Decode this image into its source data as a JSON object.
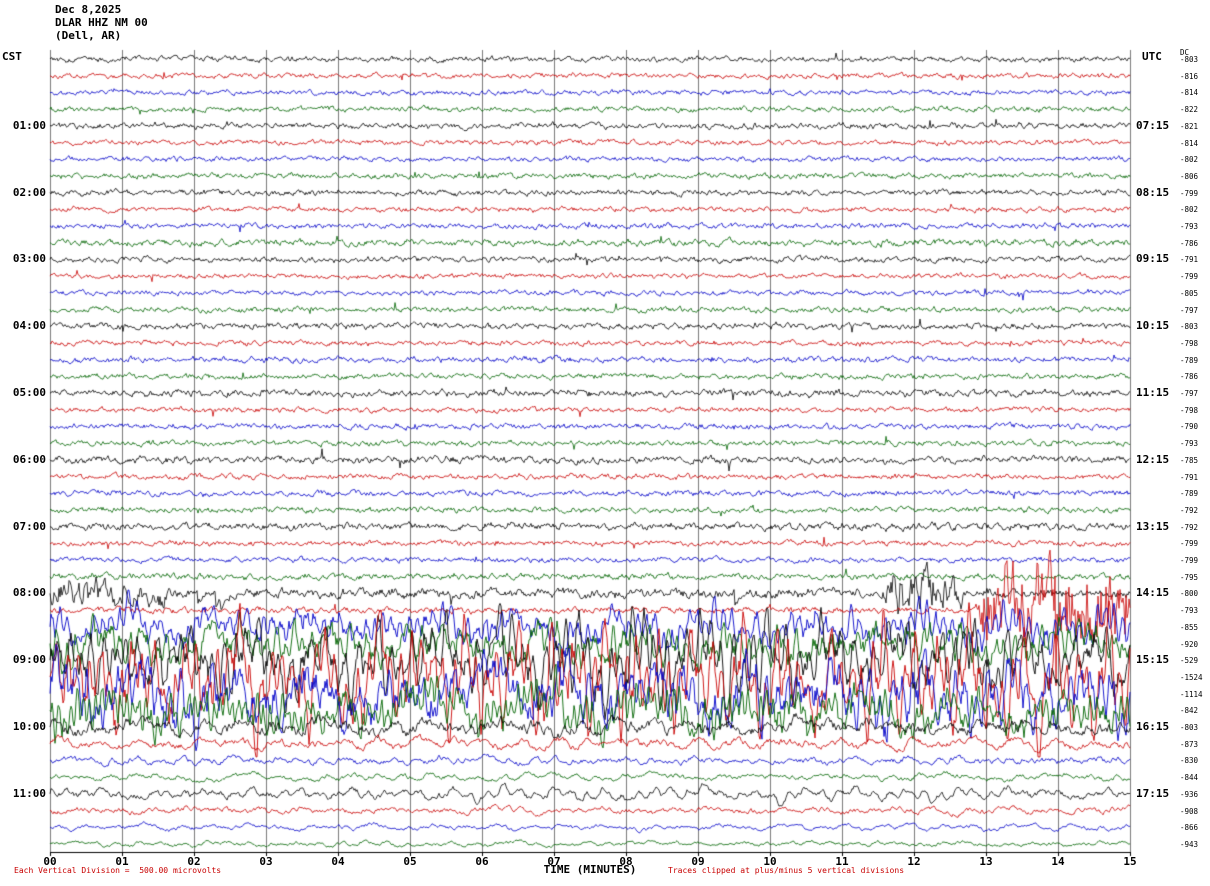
{
  "header": {
    "date": "Dec 8,2025",
    "station": "DLAR HHZ NM 00",
    "location": "(Dell, AR)"
  },
  "axes": {
    "left_label": "CST",
    "right_label": "UTC",
    "dc_label": "DC",
    "x_title": "TIME (MINUTES)",
    "x_ticks": [
      "00",
      "01",
      "02",
      "03",
      "04",
      "05",
      "06",
      "07",
      "08",
      "09",
      "10",
      "11",
      "12",
      "13",
      "14",
      "15"
    ],
    "x_min": 0,
    "x_max": 15,
    "x_unit": "minutes"
  },
  "footer": {
    "division_note": "Each Vertical Division =  500.00 microvolts",
    "clip_note": "Traces clipped at plus/minus 5 vertical divisions"
  },
  "chart_data": {
    "type": "line",
    "title": "DLAR HHZ NM 00 helicorder record, Dec 8,2025, Dell, AR",
    "xlabel": "TIME (MINUTES)",
    "x_range": [
      0,
      15
    ],
    "minutes_per_line": 15,
    "lines_per_hour": 4,
    "vertical_division_microvolts": 500.0,
    "clip_divisions": 5,
    "grid": "vertical minute lines",
    "legend_position": "none",
    "notes": "Quiet background traces 00:00-08:00 CST; large-amplitude seismic event saturating traces ~08:20-10:00 CST (UTC 14:20-16:00); elevated wavy coda 10:00-11:45 CST.",
    "trace_colors": {
      "black": "#000000",
      "red": "#c80000",
      "blue": "#0000c8",
      "green": "#006400"
    },
    "grid_color": "#7a7a7a",
    "rows": [
      {
        "color": "black",
        "dc": "-803",
        "amp": 2.2,
        "type": "q"
      },
      {
        "color": "red",
        "dc": "-816",
        "amp": 2.0,
        "type": "q"
      },
      {
        "color": "blue",
        "dc": "-814",
        "amp": 2.0,
        "type": "q"
      },
      {
        "color": "green",
        "dc": "-822",
        "amp": 2.1,
        "type": "q"
      },
      {
        "color": "black",
        "cst": "01:00",
        "utc": "07:15",
        "dc": "-821",
        "amp": 2.4,
        "type": "q"
      },
      {
        "color": "red",
        "dc": "-814",
        "amp": 2.0,
        "type": "q"
      },
      {
        "color": "blue",
        "dc": "-802",
        "amp": 2.0,
        "type": "q"
      },
      {
        "color": "green",
        "dc": "-806",
        "amp": 2.2,
        "type": "q"
      },
      {
        "color": "black",
        "cst": "02:00",
        "utc": "08:15",
        "dc": "-799",
        "amp": 2.4,
        "type": "q"
      },
      {
        "color": "red",
        "dc": "-802",
        "amp": 2.0,
        "type": "q"
      },
      {
        "color": "blue",
        "dc": "-793",
        "amp": 2.2,
        "type": "q"
      },
      {
        "color": "green",
        "dc": "-786",
        "amp": 2.6,
        "type": "q"
      },
      {
        "color": "black",
        "cst": "03:00",
        "utc": "09:15",
        "dc": "-791",
        "amp": 2.3,
        "type": "q"
      },
      {
        "color": "red",
        "dc": "-799",
        "amp": 2.0,
        "type": "q"
      },
      {
        "color": "blue",
        "dc": "-805",
        "amp": 2.0,
        "type": "q"
      },
      {
        "color": "green",
        "dc": "-797",
        "amp": 2.2,
        "type": "q"
      },
      {
        "color": "black",
        "cst": "04:00",
        "utc": "10:15",
        "dc": "-803",
        "amp": 2.4,
        "type": "q"
      },
      {
        "color": "red",
        "dc": "-798",
        "amp": 2.1,
        "type": "q"
      },
      {
        "color": "blue",
        "dc": "-789",
        "amp": 2.3,
        "type": "q"
      },
      {
        "color": "green",
        "dc": "-786",
        "amp": 2.2,
        "type": "q"
      },
      {
        "color": "black",
        "cst": "05:00",
        "utc": "11:15",
        "dc": "-797",
        "amp": 2.8,
        "type": "q"
      },
      {
        "color": "red",
        "dc": "-798",
        "amp": 2.1,
        "type": "q"
      },
      {
        "color": "blue",
        "dc": "-790",
        "amp": 2.2,
        "type": "q"
      },
      {
        "color": "green",
        "dc": "-793",
        "amp": 2.2,
        "type": "q"
      },
      {
        "color": "black",
        "cst": "06:00",
        "utc": "12:15",
        "dc": "-785",
        "amp": 2.9,
        "type": "q"
      },
      {
        "color": "red",
        "dc": "-791",
        "amp": 2.2,
        "type": "q"
      },
      {
        "color": "blue",
        "dc": "-789",
        "amp": 2.2,
        "type": "q"
      },
      {
        "color": "green",
        "dc": "-792",
        "amp": 2.3,
        "type": "q"
      },
      {
        "color": "black",
        "cst": "07:00",
        "utc": "13:15",
        "dc": "-792",
        "amp": 2.9,
        "type": "q"
      },
      {
        "color": "red",
        "dc": "-799",
        "amp": 2.1,
        "type": "q"
      },
      {
        "color": "blue",
        "dc": "-799",
        "amp": 2.1,
        "type": "q"
      },
      {
        "color": "green",
        "dc": "-795",
        "amp": 2.5,
        "type": "q"
      },
      {
        "color": "black",
        "cst": "08:00",
        "utc": "14:15",
        "dc": "-800",
        "amp": 4.0,
        "type": "s",
        "bursts": [
          {
            "a": 0,
            "b": 110,
            "m": 3.0
          },
          {
            "a": 840,
            "b": 905,
            "m": 5.0
          }
        ]
      },
      {
        "color": "red",
        "dc": "-793",
        "amp": 2.5,
        "type": "q",
        "bursts": [
          {
            "a": 935,
            "b": 1080,
            "m": 13.0
          }
        ]
      },
      {
        "color": "blue",
        "dc": "-855",
        "amp": 20,
        "type": "e"
      },
      {
        "color": "green",
        "dc": "-920",
        "amp": 25,
        "type": "e"
      },
      {
        "color": "black",
        "cst": "09:00",
        "utc": "15:15",
        "dc": "-529",
        "amp": 30,
        "type": "e"
      },
      {
        "color": "red",
        "dc": "-1524",
        "amp": 40,
        "type": "e"
      },
      {
        "color": "blue",
        "dc": "-1114",
        "amp": 35,
        "type": "e"
      },
      {
        "color": "green",
        "dc": "-842",
        "amp": 25,
        "type": "e"
      },
      {
        "color": "black",
        "cst": "10:00",
        "utc": "16:15",
        "dc": "-803",
        "amp": 10,
        "type": "w"
      },
      {
        "color": "red",
        "dc": "-873",
        "amp": 6,
        "type": "w"
      },
      {
        "color": "blue",
        "dc": "-830",
        "amp": 5,
        "type": "w"
      },
      {
        "color": "green",
        "dc": "-844",
        "amp": 4,
        "type": "w"
      },
      {
        "color": "black",
        "cst": "11:00",
        "utc": "17:15",
        "dc": "-936",
        "amp": 5.5,
        "type": "w"
      },
      {
        "color": "red",
        "dc": "-908",
        "amp": 4.5,
        "type": "w"
      },
      {
        "color": "blue",
        "dc": "-866",
        "amp": 3.5,
        "type": "w"
      },
      {
        "color": "green",
        "dc": "-943",
        "amp": 3.0,
        "type": "w"
      }
    ]
  }
}
